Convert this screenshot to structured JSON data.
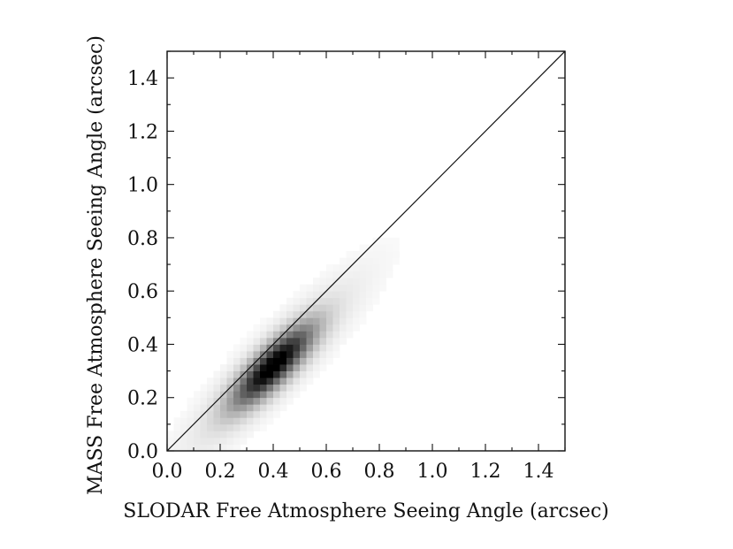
{
  "chart_data": {
    "type": "heatmap",
    "xlabel": "SLODAR Free Atmosphere Seeing Angle (arcsec)",
    "ylabel": "MASS Free Atmosphere Seeing Angle (arcsec)",
    "xlim": [
      0.0,
      1.5
    ],
    "ylim": [
      0.0,
      1.5
    ],
    "xticks": [
      "0.0",
      "0.2",
      "0.4",
      "0.6",
      "0.8",
      "1.0",
      "1.2",
      "1.4"
    ],
    "yticks": [
      "0.0",
      "0.2",
      "0.4",
      "0.6",
      "0.8",
      "1.0",
      "1.2",
      "1.4"
    ],
    "grid": false,
    "colormap": "greys",
    "density_peak": {
      "x": 0.4,
      "y": 0.32
    },
    "density_spread": {
      "along_identity": 0.13,
      "across_identity": 0.04
    },
    "reference_line": {
      "type": "identity",
      "from": [
        0.0,
        0.0
      ],
      "to": [
        1.5,
        1.5
      ]
    }
  }
}
